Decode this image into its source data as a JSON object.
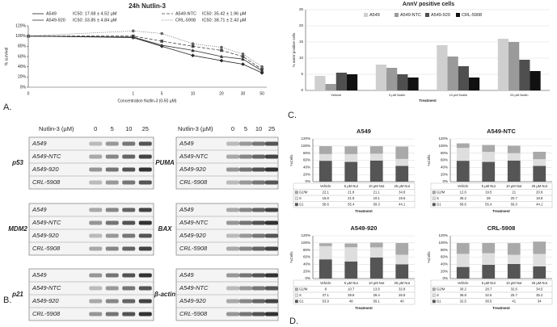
{
  "panel_labels": [
    "A.",
    "B.",
    "C.",
    "D."
  ],
  "chart_data": [
    {
      "type": "line",
      "title": "24h Nutlin-3",
      "xlabel": "Concentration Nutlin-3 (0-50 µM)",
      "ylabel": "% survival",
      "categories": [
        "0",
        "1",
        "5",
        "10",
        "20",
        "30",
        "50"
      ],
      "ylim": [
        0,
        120
      ],
      "yticks": [
        {
          "value": 0,
          "label": "0%"
        },
        {
          "value": 20,
          "label": "20%"
        },
        {
          "value": 40,
          "label": "40%"
        },
        {
          "value": 60,
          "label": "60%"
        },
        {
          "value": 80,
          "label": "80%"
        },
        {
          "value": 100,
          "label": "100%"
        },
        {
          "value": 120,
          "label": "120%"
        }
      ],
      "series": [
        {
          "name": "A549",
          "ic50": "IC50: 17.68 ± 4.52 µM",
          "color": "#222222",
          "style": "solid",
          "marker": "diamond",
          "values": [
            100,
            97,
            80,
            62,
            52,
            45,
            28
          ]
        },
        {
          "name": "A549-NTC",
          "ic50": "IC50: 35.42 ± 1.96 µM",
          "color": "#444444",
          "style": "dashed",
          "marker": "square",
          "values": [
            100,
            100,
            90,
            80,
            72,
            60,
            35
          ]
        },
        {
          "name": "A549-920",
          "ic50": "IC50: 33.85 ± 4.84 µM",
          "color": "#333333",
          "style": "solid",
          "marker": "triangle",
          "values": [
            100,
            98,
            82,
            72,
            60,
            55,
            32
          ]
        },
        {
          "name": "CRL-5908",
          "ic50": "IC50: 38.71 ± 2.43 µM",
          "color": "#666666",
          "style": "dotted",
          "marker": "circle",
          "values": [
            100,
            110,
            105,
            85,
            78,
            65,
            40
          ]
        }
      ],
      "grid": false
    },
    {
      "type": "bar",
      "title": "AnnV positive cells",
      "xlabel": "Treatment",
      "ylabel": "% annV positive cells",
      "categories": [
        "Vehicle",
        "5 µM Nutlin",
        "10 µM Nutlin",
        "25 µM Nutlin"
      ],
      "ylim": [
        0,
        25
      ],
      "yticks": [
        0,
        5,
        10,
        15,
        20,
        25
      ],
      "series": [
        {
          "name": "A549",
          "color": "#cfcfcf",
          "values": [
            4.5,
            8,
            14,
            16
          ]
        },
        {
          "name": "A549-NTC",
          "color": "#9a9a9a",
          "values": [
            2,
            7,
            10.5,
            15
          ]
        },
        {
          "name": "A549-920",
          "color": "#4f4f4f",
          "values": [
            5.5,
            5,
            7.5,
            9.5
          ]
        },
        {
          "name": "CRL-5908",
          "color": "#111111",
          "values": [
            5,
            4,
            4,
            6
          ]
        }
      ],
      "grid": true
    },
    {
      "type": "stacked_bar",
      "title": "A549",
      "xlabel": "Treatment",
      "ylabel": "%Cells",
      "categories": [
        "Vehicle",
        "5 µM Nut",
        "10 µM Nut",
        "25 µM Nut"
      ],
      "ylim": [
        0,
        120
      ],
      "yticks": [
        {
          "value": 0,
          "label": "0%"
        },
        {
          "value": 20,
          "label": "20%"
        },
        {
          "value": 40,
          "label": "40%"
        },
        {
          "value": 60,
          "label": "60%"
        },
        {
          "value": 80,
          "label": "80%"
        },
        {
          "value": 100,
          "label": "100%"
        },
        {
          "value": 120,
          "label": "120%"
        }
      ],
      "series": [
        {
          "name": "G2/M",
          "color": "#a9a9a9",
          "values": [
            22.1,
            21.8,
            21.1,
            34.8
          ]
        },
        {
          "name": "S",
          "color": "#dedede",
          "values": [
            18.8,
            21.9,
            19.1,
            19.6
          ]
        },
        {
          "name": "G1",
          "color": "#555555",
          "values": [
            58.6,
            55.4,
            59.3,
            44.1
          ]
        }
      ],
      "grid": true
    },
    {
      "type": "stacked_bar",
      "title": "A549-NTC",
      "xlabel": "Treatment",
      "ylabel": "%Cells",
      "categories": [
        "Vehicle",
        "5 µM Nut",
        "10 µM Nut",
        "25 µM Nut"
      ],
      "ylim": [
        0,
        120
      ],
      "yticks": [
        {
          "value": 0,
          "label": "0%"
        },
        {
          "value": 20,
          "label": "20%"
        },
        {
          "value": 40,
          "label": "40%"
        },
        {
          "value": 60,
          "label": "60%"
        },
        {
          "value": 80,
          "label": "80%"
        },
        {
          "value": 100,
          "label": "100%"
        },
        {
          "value": 120,
          "label": "120%"
        }
      ],
      "series": [
        {
          "name": "G2/M",
          "color": "#a9a9a9",
          "values": [
            12.6,
            19.5,
            21.0,
            20.9
          ]
        },
        {
          "name": "S",
          "color": "#dedede",
          "values": [
            36.2,
            28.0,
            20.7,
            18.8
          ]
        },
        {
          "name": "G1",
          "color": "#555555",
          "values": [
            58.6,
            55.4,
            59.3,
            44.1
          ]
        }
      ],
      "grid": true
    },
    {
      "type": "stacked_bar",
      "title": "A549-920",
      "xlabel": "Treatment",
      "ylabel": "%Cells",
      "categories": [
        "Vehicle",
        "5 µM Nut",
        "10 µM Nut",
        "25 µM Nut"
      ],
      "ylim": [
        0,
        120
      ],
      "yticks": [
        {
          "value": 0,
          "label": "0%"
        },
        {
          "value": 20,
          "label": "20%"
        },
        {
          "value": 40,
          "label": "40%"
        },
        {
          "value": 60,
          "label": "60%"
        },
        {
          "value": 80,
          "label": "80%"
        },
        {
          "value": 100,
          "label": "100%"
        },
        {
          "value": 120,
          "label": "120%"
        }
      ],
      "series": [
        {
          "name": "G2/M",
          "color": "#a9a9a9",
          "values": [
            8.0,
            10.7,
            13.6,
            32.8
          ]
        },
        {
          "name": "S",
          "color": "#dedede",
          "values": [
            37.1,
            39.8,
            28.4,
            26.8
          ]
        },
        {
          "name": "G1",
          "color": "#555555",
          "values": [
            53.9,
            48.0,
            59.1,
            40.0
          ]
        }
      ],
      "grid": true
    },
    {
      "type": "stacked_bar",
      "title": "CRL-5908",
      "xlabel": "Treatment",
      "ylabel": "%Cells",
      "categories": [
        "Vehicle",
        "5 µM Nut",
        "10 µM Nut",
        "25 µM Nut"
      ],
      "ylim": [
        0,
        120
      ],
      "yticks": [
        {
          "value": 0,
          "label": "0%"
        },
        {
          "value": 20,
          "label": "20%"
        },
        {
          "value": 40,
          "label": "40%"
        },
        {
          "value": 60,
          "label": "60%"
        },
        {
          "value": 80,
          "label": "80%"
        },
        {
          "value": 100,
          "label": "100%"
        },
        {
          "value": 120,
          "label": "120%"
        }
      ],
      "series": [
        {
          "name": "G2/M",
          "color": "#a9a9a9",
          "values": [
            30.2,
            28.7,
            32.6,
            34.5
          ]
        },
        {
          "name": "S",
          "color": "#dedede",
          "values": [
            36.8,
            32.5,
            25.7,
            35.2
          ]
        },
        {
          "name": "G1",
          "color": "#555555",
          "values": [
            32.5,
            38.5,
            41.0,
            34.0
          ]
        }
      ],
      "grid": true
    }
  ],
  "blots": {
    "header": "Nutlin-3 (µM)",
    "doses": [
      "0",
      "5",
      "10",
      "25"
    ],
    "cell_lines": [
      "A549",
      "A549-NTC",
      "A549-920",
      "CRL-5908"
    ],
    "left": [
      "p53",
      "MDM2",
      "p21"
    ],
    "right": [
      "PUMA",
      "BAX",
      "β-actin"
    ]
  }
}
